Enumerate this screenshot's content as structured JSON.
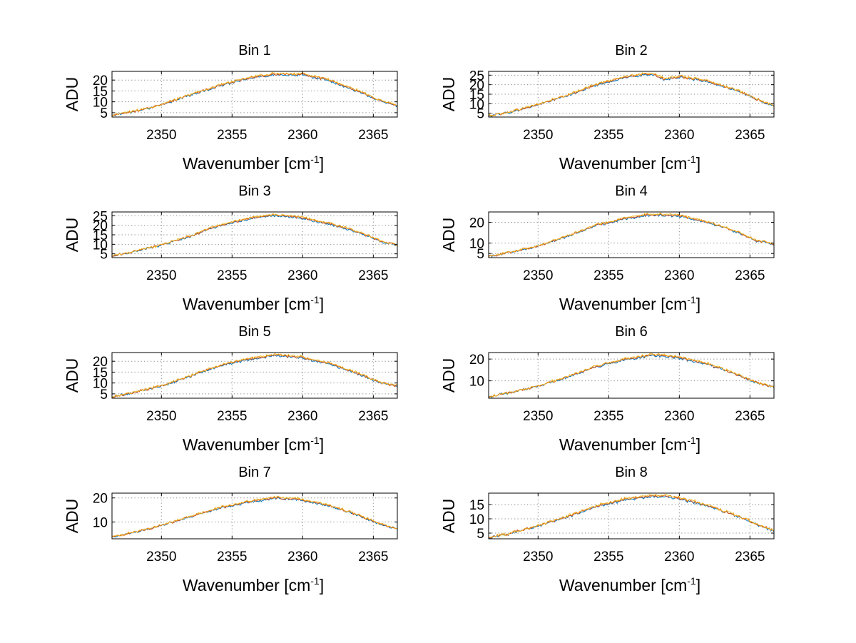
{
  "chart_data": [
    {
      "type": "line",
      "title": "Bin 1",
      "xlabel": "Wavenumber [cm",
      "xlabel_sup": "-1",
      "xlabel_close": "]",
      "ylabel": "ADU",
      "xlim": [
        2346.5,
        2366.7
      ],
      "ylim": [
        3,
        24
      ],
      "xticks": [
        2350,
        2355,
        2360,
        2365
      ],
      "xtick_labels": [
        "2350",
        "2355",
        "2360",
        "2365"
      ],
      "yticks": [
        5,
        10,
        15,
        20
      ],
      "ytick_labels": [
        "5",
        "10",
        "15",
        "20"
      ],
      "grid": true,
      "noise": 0.35,
      "profile": {
        "x": [
          2346.5,
          2348,
          2350,
          2352,
          2354,
          2356,
          2358,
          2359,
          2360,
          2362,
          2364,
          2365.5,
          2366.7
        ],
        "y": [
          3.6,
          5.5,
          8.5,
          13,
          17,
          20.5,
          22.5,
          22.2,
          22.3,
          19.5,
          14.5,
          10.5,
          8
        ]
      },
      "series": [
        {
          "name": "blue",
          "color": "#0072bd",
          "offset": 0
        },
        {
          "name": "orange",
          "color": "#d95319",
          "offset": 0.35
        },
        {
          "name": "yellow",
          "color": "#edb120",
          "offset": 0.7
        }
      ]
    },
    {
      "type": "line",
      "title": "Bin 2",
      "xlabel": "Wavenumber [cm",
      "xlabel_sup": "-1",
      "xlabel_close": "]",
      "ylabel": "ADU",
      "xlim": [
        2346.5,
        2366.7
      ],
      "ylim": [
        3,
        27
      ],
      "xticks": [
        2350,
        2355,
        2360,
        2365
      ],
      "xtick_labels": [
        "2350",
        "2355",
        "2360",
        "2365"
      ],
      "yticks": [
        5,
        10,
        15,
        20,
        25
      ],
      "ytick_labels": [
        "5",
        "10",
        "15",
        "20",
        "25"
      ],
      "grid": true,
      "noise": 0.4,
      "profile": {
        "x": [
          2346.5,
          2348,
          2350,
          2352,
          2354,
          2356,
          2358,
          2359,
          2360,
          2362,
          2364,
          2365.5,
          2366.7
        ],
        "y": [
          3.6,
          5.5,
          9.5,
          14,
          19.5,
          23.5,
          25.5,
          22.5,
          24,
          21.5,
          17,
          12,
          9
        ]
      },
      "series": [
        {
          "name": "blue",
          "color": "#0072bd",
          "offset": 0
        },
        {
          "name": "orange",
          "color": "#d95319",
          "offset": 0.4
        },
        {
          "name": "yellow",
          "color": "#edb120",
          "offset": 0.8
        }
      ]
    },
    {
      "type": "line",
      "title": "Bin 3",
      "xlabel": "Wavenumber [cm",
      "xlabel_sup": "-1",
      "xlabel_close": "]",
      "ylabel": "ADU",
      "xlim": [
        2346.5,
        2366.7
      ],
      "ylim": [
        3,
        27
      ],
      "xticks": [
        2350,
        2355,
        2360,
        2365
      ],
      "xtick_labels": [
        "2350",
        "2355",
        "2360",
        "2365"
      ],
      "yticks": [
        5,
        10,
        15,
        20,
        25
      ],
      "ytick_labels": [
        "5",
        "10",
        "15",
        "20",
        "25"
      ],
      "grid": true,
      "noise": 0.4,
      "profile": {
        "x": [
          2346.5,
          2348,
          2350,
          2352,
          2354,
          2356,
          2358,
          2359,
          2360,
          2362,
          2364,
          2365.5,
          2366.7
        ],
        "y": [
          3.8,
          6,
          9.5,
          14,
          19.5,
          23,
          25,
          24.5,
          23.5,
          20.5,
          16,
          11.5,
          9.5
        ]
      },
      "series": [
        {
          "name": "blue",
          "color": "#0072bd",
          "offset": 0
        },
        {
          "name": "orange",
          "color": "#d95319",
          "offset": 0.4
        },
        {
          "name": "yellow",
          "color": "#edb120",
          "offset": 0.8
        }
      ]
    },
    {
      "type": "line",
      "title": "Bin 4",
      "xlabel": "Wavenumber [cm",
      "xlabel_sup": "-1",
      "xlabel_close": "]",
      "ylabel": "ADU",
      "xlim": [
        2346.5,
        2366.7
      ],
      "ylim": [
        3,
        25
      ],
      "xticks": [
        2350,
        2355,
        2360,
        2365
      ],
      "xtick_labels": [
        "2350",
        "2355",
        "2360",
        "2365"
      ],
      "yticks": [
        5,
        10,
        20
      ],
      "ytick_labels": [
        "5",
        "10",
        "20"
      ],
      "grid": true,
      "noise": 0.35,
      "profile": {
        "x": [
          2346.5,
          2348,
          2350,
          2352,
          2354,
          2356,
          2358,
          2359,
          2360,
          2362,
          2364,
          2365.5,
          2366.7
        ],
        "y": [
          3.6,
          5.5,
          8.5,
          13,
          18,
          21.5,
          23.5,
          23.3,
          23,
          20,
          15.5,
          11,
          9.5
        ]
      },
      "series": [
        {
          "name": "blue",
          "color": "#0072bd",
          "offset": 0
        },
        {
          "name": "orange",
          "color": "#d95319",
          "offset": 0.35
        },
        {
          "name": "yellow",
          "color": "#edb120",
          "offset": 0.7
        }
      ]
    },
    {
      "type": "line",
      "title": "Bin 5",
      "xlabel": "Wavenumber [cm",
      "xlabel_sup": "-1",
      "xlabel_close": "]",
      "ylabel": "ADU",
      "xlim": [
        2346.5,
        2366.7
      ],
      "ylim": [
        3,
        24
      ],
      "xticks": [
        2350,
        2355,
        2360,
        2365
      ],
      "xtick_labels": [
        "2350",
        "2355",
        "2360",
        "2365"
      ],
      "yticks": [
        5,
        10,
        15,
        20
      ],
      "ytick_labels": [
        "5",
        "10",
        "15",
        "20"
      ],
      "grid": true,
      "noise": 0.35,
      "profile": {
        "x": [
          2346.5,
          2348,
          2350,
          2352,
          2354,
          2356,
          2358,
          2359,
          2360,
          2362,
          2364,
          2365.5,
          2366.7
        ],
        "y": [
          3.6,
          5.5,
          8.5,
          13,
          17.5,
          20.5,
          22.5,
          22,
          21.5,
          18.5,
          14,
          10,
          8.5
        ]
      },
      "series": [
        {
          "name": "blue",
          "color": "#0072bd",
          "offset": 0
        },
        {
          "name": "orange",
          "color": "#d95319",
          "offset": 0.35
        },
        {
          "name": "yellow",
          "color": "#edb120",
          "offset": 0.7
        }
      ]
    },
    {
      "type": "line",
      "title": "Bin 6",
      "xlabel": "Wavenumber [cm",
      "xlabel_sup": "-1",
      "xlabel_close": "]",
      "ylabel": "ADU",
      "xlim": [
        2346.5,
        2366.7
      ],
      "ylim": [
        2,
        23
      ],
      "xticks": [
        2350,
        2355,
        2360,
        2365
      ],
      "xtick_labels": [
        "2350",
        "2355",
        "2360",
        "2365"
      ],
      "yticks": [
        10,
        20
      ],
      "ytick_labels": [
        "10",
        "20"
      ],
      "grid": true,
      "noise": 0.35,
      "profile": {
        "x": [
          2346.5,
          2348,
          2350,
          2352,
          2354,
          2356,
          2358,
          2359,
          2360,
          2362,
          2364,
          2365.5,
          2366.7
        ],
        "y": [
          2.6,
          4.5,
          7.5,
          11.5,
          16,
          19.5,
          21.5,
          21.3,
          20.5,
          17.5,
          13,
          9,
          7
        ]
      },
      "series": [
        {
          "name": "blue",
          "color": "#0072bd",
          "offset": 0
        },
        {
          "name": "orange",
          "color": "#d95319",
          "offset": 0.35
        },
        {
          "name": "yellow",
          "color": "#edb120",
          "offset": 0.7
        }
      ]
    },
    {
      "type": "line",
      "title": "Bin 7",
      "xlabel": "Wavenumber [cm",
      "xlabel_sup": "-1",
      "xlabel_close": "]",
      "ylabel": "ADU",
      "xlim": [
        2346.5,
        2366.7
      ],
      "ylim": [
        3,
        22
      ],
      "xticks": [
        2350,
        2355,
        2360,
        2365
      ],
      "xtick_labels": [
        "2350",
        "2355",
        "2360",
        "2365"
      ],
      "yticks": [
        10,
        20
      ],
      "ytick_labels": [
        "10",
        "20"
      ],
      "grid": true,
      "noise": 0.3,
      "profile": {
        "x": [
          2346.5,
          2348,
          2350,
          2352,
          2354,
          2356,
          2358,
          2359,
          2360,
          2362,
          2364,
          2365.5,
          2366.7
        ],
        "y": [
          3.6,
          5.5,
          8.5,
          12,
          15.5,
          18,
          19.8,
          19.6,
          19,
          16.5,
          12.5,
          9,
          7
        ]
      },
      "series": [
        {
          "name": "blue",
          "color": "#0072bd",
          "offset": 0
        },
        {
          "name": "orange",
          "color": "#d95319",
          "offset": 0.3
        },
        {
          "name": "yellow",
          "color": "#edb120",
          "offset": 0.6
        }
      ]
    },
    {
      "type": "line",
      "title": "Bin 8",
      "xlabel": "Wavenumber [cm",
      "xlabel_sup": "-1",
      "xlabel_close": "]",
      "ylabel": "ADU",
      "xlim": [
        2346.5,
        2366.7
      ],
      "ylim": [
        3,
        19
      ],
      "xticks": [
        2350,
        2355,
        2360,
        2365
      ],
      "xtick_labels": [
        "2350",
        "2355",
        "2360",
        "2365"
      ],
      "yticks": [
        5,
        10,
        15
      ],
      "ytick_labels": [
        "5",
        "10",
        "15"
      ],
      "grid": true,
      "noise": 0.3,
      "profile": {
        "x": [
          2346.5,
          2348,
          2350,
          2352,
          2354,
          2356,
          2358,
          2359,
          2360,
          2362,
          2364,
          2365.5,
          2366.7
        ],
        "y": [
          3.4,
          4.8,
          7.5,
          10.5,
          14,
          16.5,
          17.8,
          17.6,
          17,
          14.5,
          11,
          8,
          5.8
        ]
      },
      "series": [
        {
          "name": "blue",
          "color": "#0072bd",
          "offset": 0
        },
        {
          "name": "orange",
          "color": "#d95319",
          "offset": 0.3
        },
        {
          "name": "yellow",
          "color": "#edb120",
          "offset": 0.6
        }
      ]
    }
  ]
}
